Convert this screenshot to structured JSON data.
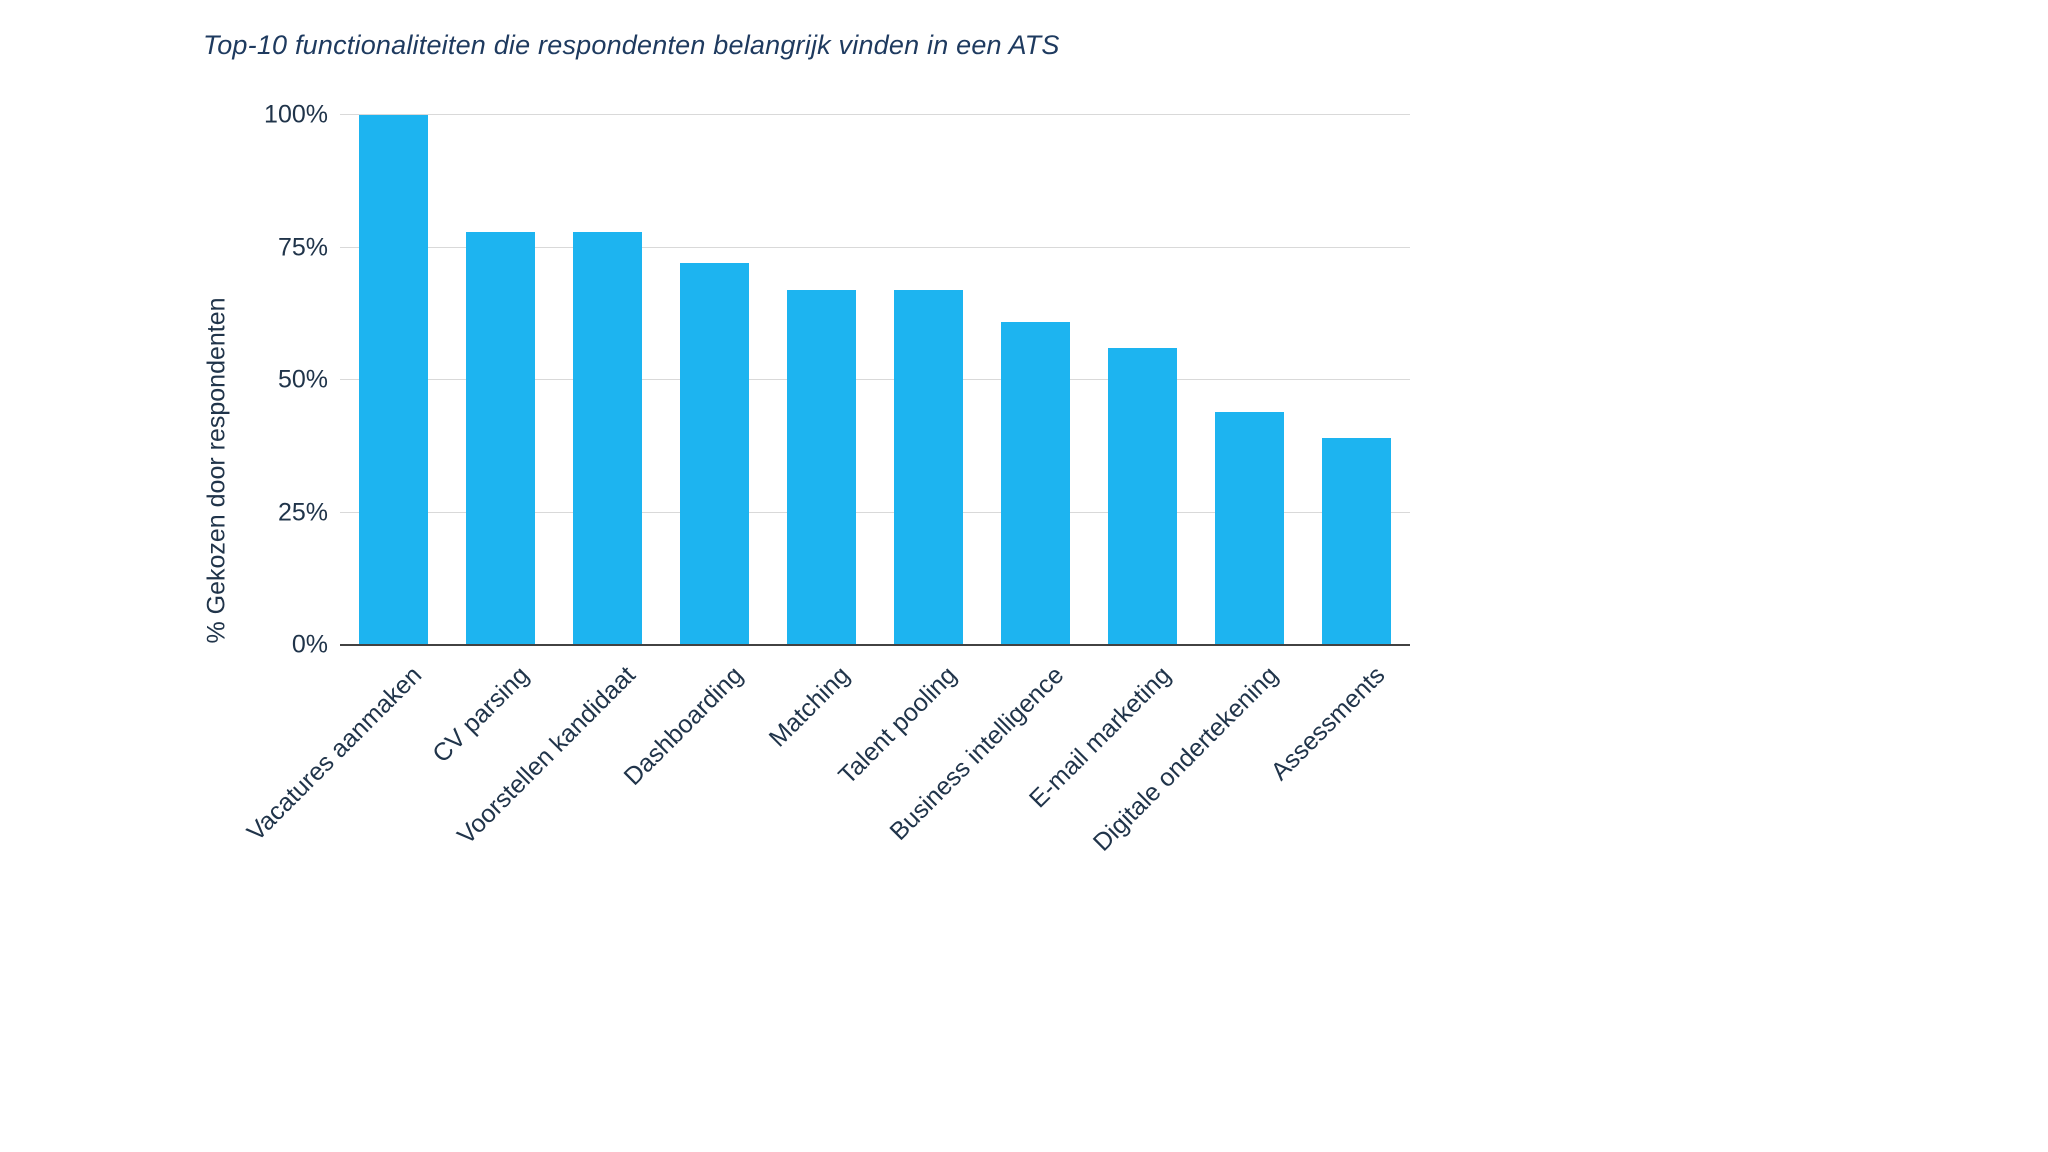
{
  "page": {
    "background": "#ffffff"
  },
  "chart_data": {
    "type": "bar",
    "title": "Top-10 functionaliteiten die respondenten belangrijk vinden in een ATS",
    "xlabel": "",
    "ylabel": "% Gekozen door respondenten",
    "categories": [
      "Vacatures aanmaken",
      "CV parsing",
      "Voorstellen kandidaat",
      "Dashboarding",
      "Matching",
      "Talent pooling",
      "Business intelligence",
      "E-mail marketing",
      "Digitale ondertekening",
      "Assessments"
    ],
    "values": [
      100,
      78,
      78,
      72,
      67,
      67,
      61,
      56,
      44,
      39
    ],
    "ylim": [
      0,
      100
    ],
    "yticks": [
      {
        "value": 0,
        "label": "0%"
      },
      {
        "value": 25,
        "label": "25%"
      },
      {
        "value": 50,
        "label": "50%"
      },
      {
        "value": 75,
        "label": "75%"
      },
      {
        "value": 100,
        "label": "100%"
      }
    ],
    "grid": true,
    "legend": "none",
    "colors": {
      "bar": "#1db4f0",
      "title": "#1e3a5f",
      "axis_text": "#20344a",
      "gridline": "#d9d9d9",
      "baseline": "#424242"
    }
  }
}
